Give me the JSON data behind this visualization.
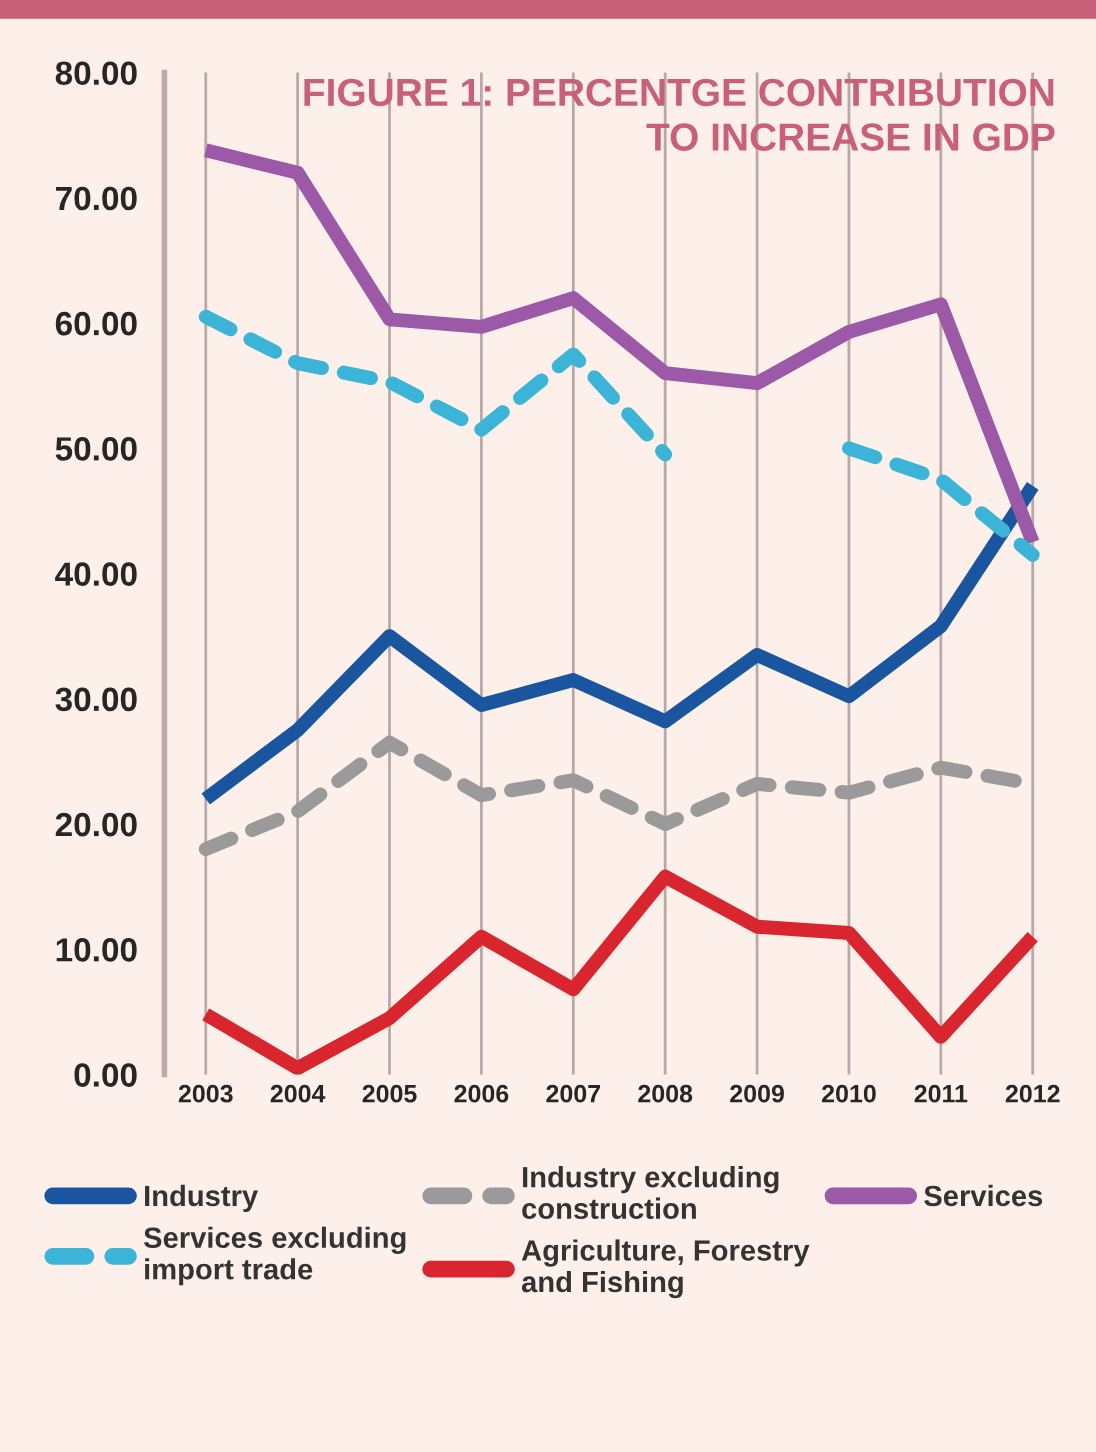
{
  "chart_data": {
    "type": "line",
    "title": "FIGURE 1: PERCENTGE CONTRIBUTION\nTO INCREASE IN GDP",
    "categories": [
      "2003",
      "2004",
      "2005",
      "2006",
      "2007",
      "2008",
      "2009",
      "2010",
      "2011",
      "2012"
    ],
    "series": [
      {
        "name": "Industry",
        "color": "#1a56a0",
        "line_style": "solid",
        "values": [
          22,
          27.5,
          35,
          29.5,
          31.5,
          28.2,
          33.5,
          30.2,
          35.8,
          47
        ]
      },
      {
        "name": "Industry excluding\nconstruction",
        "color": "#9a9a9a",
        "line_style": "dashed",
        "values": [
          18,
          21,
          26.5,
          22.3,
          23.5,
          20,
          23.2,
          22.5,
          24.5,
          23.2
        ]
      },
      {
        "name": "Services",
        "color": "#9b59a8",
        "line_style": "solid",
        "values": [
          73.8,
          72,
          60.3,
          59.7,
          62,
          56,
          55.2,
          59.3,
          61.5,
          42.5
        ]
      },
      {
        "name": "Services excluding\nimport trade",
        "color": "#3bb4d8",
        "line_style": "dashed",
        "values": [
          60.5,
          56.8,
          55.3,
          51.5,
          57.5,
          49.5,
          null,
          50,
          47.5,
          41.5
        ]
      },
      {
        "name": "Agriculture, Forestry\nand Fishing",
        "color": "#d9262e",
        "line_style": "solid",
        "values": [
          4.8,
          0.5,
          4.5,
          11,
          6.8,
          15.8,
          11.8,
          11.3,
          3,
          11
        ]
      }
    ],
    "ylim": [
      0,
      80
    ],
    "yticks": [
      {
        "value": 0,
        "label": "0.00"
      },
      {
        "value": 10,
        "label": "10.00"
      },
      {
        "value": 20,
        "label": "20.00"
      },
      {
        "value": 30,
        "label": "30.00"
      },
      {
        "value": 40,
        "label": "40.00"
      },
      {
        "value": 50,
        "label": "50.00"
      },
      {
        "value": 60,
        "label": "60.00"
      },
      {
        "value": 70,
        "label": "70.00"
      },
      {
        "value": 80,
        "label": "80.00"
      }
    ],
    "grid": "x",
    "legend": "bottom",
    "marker": "none"
  }
}
